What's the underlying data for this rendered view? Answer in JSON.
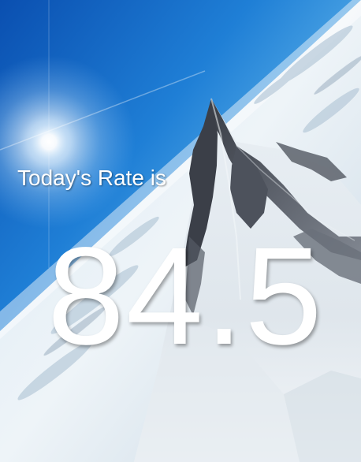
{
  "card": {
    "label": "Today's Rate is",
    "value": "84.5"
  },
  "colors": {
    "sky_top": "#0a55b8",
    "sky_mid": "#2a8fe0",
    "sky_horizon": "#bfe2f6",
    "snow": "#eef3f7",
    "rock": "#4a4e58",
    "text": "#ffffff"
  }
}
